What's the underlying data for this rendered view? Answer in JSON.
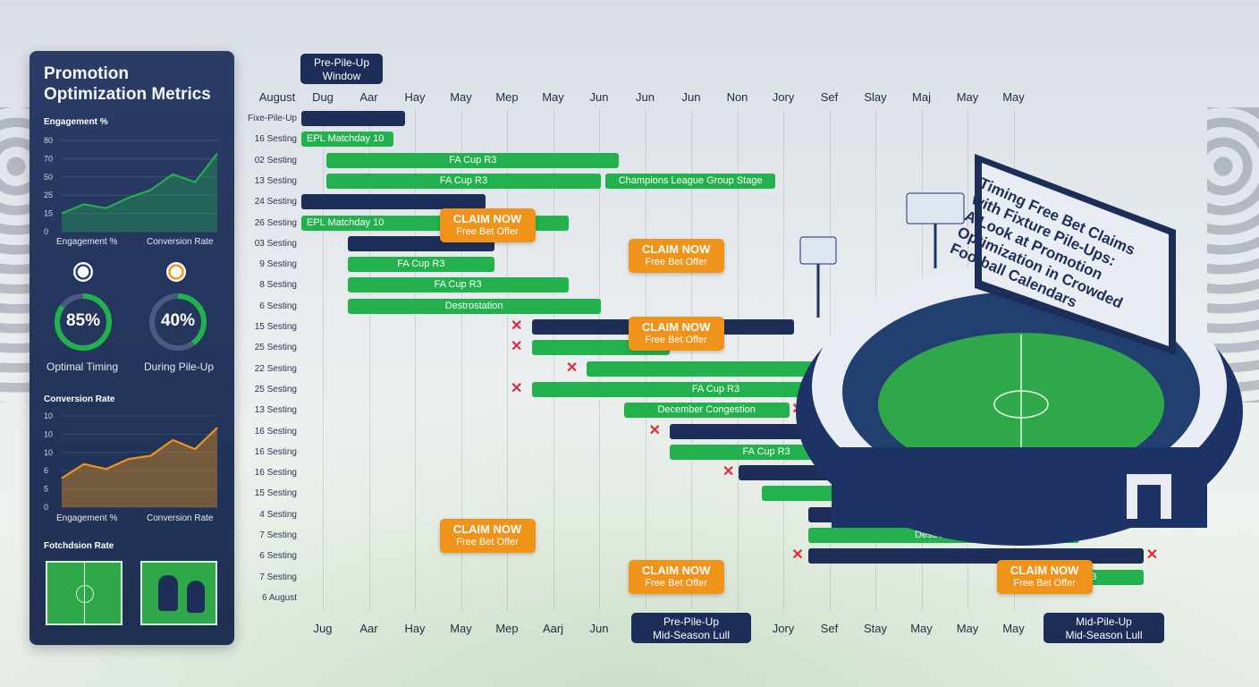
{
  "panel": {
    "title": "Promotion Optimization Metrics",
    "engagement_title": "Engagement %",
    "chart1": {
      "yticks": [
        "80",
        "70",
        "50",
        "25",
        "15",
        "0"
      ],
      "xlabels": [
        "Engagement %",
        "Conversion Rate"
      ],
      "values": [
        14,
        21,
        18,
        26,
        32,
        44,
        38,
        60
      ]
    },
    "gauges": [
      {
        "value": "85%",
        "label": "Optimal Timing",
        "fill": 0.85
      },
      {
        "value": "40%",
        "label": "During Pile-Up",
        "fill": 0.4
      }
    ],
    "conversion_title": "Conversion Rate",
    "chart2": {
      "yticks": [
        "10",
        "10",
        "10",
        "6",
        "5",
        "0"
      ],
      "xlabels": [
        "Engagement %",
        "Conversion Rate"
      ],
      "values": [
        3.5,
        5.2,
        4.6,
        5.8,
        6.2,
        8.1,
        7.0,
        9.6
      ]
    },
    "footer_title": "Fotchdsion Rate"
  },
  "colors": {
    "green": "#22b14c",
    "navy": "#1d2e58",
    "orange": "#f0931a",
    "red": "#e02a3a"
  },
  "headline": [
    "Timing Free Bet Claims",
    "with Fixture Pile-Ups:",
    "A Look at Promotion",
    "Optimization in Crowded",
    "Football Calendars"
  ],
  "tags": {
    "top": [
      "Pre-Pile-Up",
      "Window"
    ],
    "bottom_left": [
      "Pre-Pile-Up",
      "Mid-Season Lull"
    ],
    "bottom_right": [
      "Mid-Pile-Up",
      "Mid-Season Lull"
    ]
  },
  "claim": {
    "title": "CLAIM NOW",
    "sub": "Free Bet Offer"
  },
  "chart_data": {
    "type": "gantt",
    "top_axis_label": "August",
    "months_top": [
      "Dug",
      "Aar",
      "Hay",
      "May",
      "Mep",
      "May",
      "Jun",
      "Jun",
      "Jun",
      "Non",
      "Jory",
      "Sef",
      "Slay",
      "Maj",
      "May",
      "May"
    ],
    "months_bottom": [
      "Jug",
      "Aar",
      "Hay",
      "May",
      "Mep",
      "Aarj",
      "Jun",
      "",
      "",
      "",
      "Jory",
      "Sef",
      "Stay",
      "May",
      "May",
      "May"
    ],
    "rows": [
      "Fixe-Pile-Up",
      "16 Sesting",
      "02 Sesting",
      "13 Sesting",
      "24 Sesting",
      "26 Sesting",
      "03 Sesting",
      "9 Sesting",
      "8 Sesting",
      "6 Sesting",
      "15 Sesting",
      "25 Sesting",
      "22 Sesting",
      "25 Sesting",
      "13 Sesting",
      "16 Sesting",
      "16 Sesting",
      "16 Sesting",
      "15 Sesting",
      "4 Sesting",
      "7 Sesting",
      "6 Sesting",
      "7 Sesting",
      "6 August"
    ],
    "bars": [
      {
        "row": 0,
        "start": 0,
        "end": 2.25,
        "color": "navy",
        "label": ""
      },
      {
        "row": 1,
        "start": 0,
        "end": 2,
        "color": "green",
        "label": "EPL Matchday 10"
      },
      {
        "row": 2,
        "start": 0.55,
        "end": 6.9,
        "color": "green",
        "label": "FA Cup R3"
      },
      {
        "row": 3,
        "start": 0.55,
        "end": 6.5,
        "color": "green",
        "label": "FA Cup R3"
      },
      {
        "row": 3,
        "start": 6.6,
        "end": 10.3,
        "color": "green",
        "label": "Champions League Group Stage"
      },
      {
        "row": 4,
        "start": 0,
        "end": 4,
        "color": "navy",
        "label": ""
      },
      {
        "row": 5,
        "start": 0,
        "end": 5.8,
        "color": "green",
        "label": "EPL Matchday 10"
      },
      {
        "row": 6,
        "start": 1,
        "end": 4.2,
        "color": "navy",
        "label": ""
      },
      {
        "row": 7,
        "start": 1,
        "end": 4.2,
        "color": "green",
        "label": "FA Cup R3"
      },
      {
        "row": 8,
        "start": 1,
        "end": 5.8,
        "color": "green",
        "label": "FA Cup R3"
      },
      {
        "row": 9,
        "start": 1,
        "end": 6.5,
        "color": "green",
        "label": "Destrostation"
      },
      {
        "row": 10,
        "start": 5,
        "end": 10.7,
        "color": "navy",
        "label": ""
      },
      {
        "row": 11,
        "start": 5,
        "end": 8,
        "color": "green",
        "label": ""
      },
      {
        "row": 12,
        "start": 6.2,
        "end": 12.2,
        "color": "green",
        "label": ""
      },
      {
        "row": 13,
        "start": 5,
        "end": 13,
        "color": "green",
        "label": "FA Cup R3"
      },
      {
        "row": 14,
        "start": 7,
        "end": 10.6,
        "color": "green",
        "label": "December Congestion"
      },
      {
        "row": 15,
        "start": 8,
        "end": 12.2,
        "color": "navy",
        "label": ""
      },
      {
        "row": 16,
        "start": 8,
        "end": 12.2,
        "color": "green",
        "label": "FA Cup R3"
      },
      {
        "row": 16,
        "start": 12.2,
        "end": 15.3,
        "color": "navy",
        "label": ""
      },
      {
        "row": 17,
        "start": 9.5,
        "end": 15.5,
        "color": "navy",
        "label": ""
      },
      {
        "row": 17,
        "start": 12.2,
        "end": 16.9,
        "color": "green",
        "label": "FA Cup R3"
      },
      {
        "row": 18,
        "start": 10,
        "end": 14.6,
        "color": "green",
        "label": "FA Cup R3"
      },
      {
        "row": 19,
        "start": 11,
        "end": 14.6,
        "color": "navy",
        "label": ""
      },
      {
        "row": 20,
        "start": 11,
        "end": 16.9,
        "color": "green",
        "label": "Destrostation"
      },
      {
        "row": 21,
        "start": 11,
        "end": 18.3,
        "color": "navy",
        "label": ""
      },
      {
        "row": 22,
        "start": 15.2,
        "end": 18.3,
        "color": "green",
        "label": "FA Cup R3"
      }
    ],
    "x_marks": [
      [
        10,
        4.7
      ],
      [
        11,
        4.7
      ],
      [
        12,
        5.9
      ],
      [
        13,
        4.7
      ],
      [
        12,
        12.4
      ],
      [
        14,
        10.8
      ],
      [
        15,
        7.7
      ],
      [
        15,
        12.4
      ],
      [
        16,
        15.5
      ],
      [
        17,
        9.3
      ],
      [
        18,
        15
      ],
      [
        19,
        15
      ],
      [
        20,
        17
      ],
      [
        21,
        10.8
      ],
      [
        21,
        18.5
      ]
    ],
    "claims": [
      [
        5,
        3
      ],
      [
        6.5,
        7.1
      ],
      [
        10.2,
        7.1
      ],
      [
        19.9,
        3
      ],
      [
        21.9,
        7.1
      ],
      [
        21.9,
        15.1
      ]
    ],
    "grid": true
  }
}
